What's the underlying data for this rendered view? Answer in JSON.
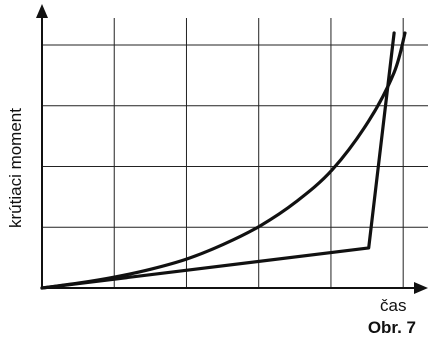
{
  "chart_data": {
    "type": "line",
    "xlabel": "čas",
    "ylabel": "krútiaci moment",
    "caption": "Obr. 7",
    "xlim": [
      0,
      5
    ],
    "ylim": [
      0,
      4.2
    ],
    "grid": true,
    "x_grid_divisions": 5,
    "y_grid_divisions": 4,
    "series": [
      {
        "x": [
          0,
          0.5,
          1.0,
          1.5,
          2.0,
          2.5,
          3.0,
          3.5,
          4.0,
          4.5,
          4.85,
          5.0
        ],
        "y": [
          0,
          0.08,
          0.18,
          0.31,
          0.48,
          0.72,
          1.02,
          1.42,
          1.95,
          2.75,
          3.55,
          4.2
        ]
      },
      {
        "x": [
          0,
          4.5,
          4.85
        ],
        "y": [
          0,
          0.66,
          4.2
        ]
      }
    ]
  }
}
